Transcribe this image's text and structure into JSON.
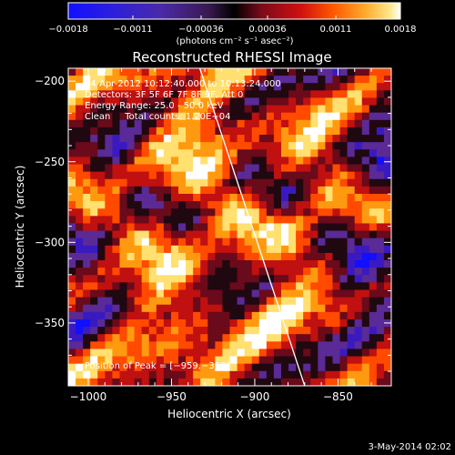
{
  "chart_data": {
    "type": "heatmap",
    "title": "Reconstructed RHESSI Image",
    "xlabel": "Heliocentric X (arcsec)",
    "ylabel": "Heliocentric Y (arcsec)",
    "xlim": [
      -1012,
      -818
    ],
    "ylim": [
      -389,
      -192
    ],
    "xticks": [
      -1000,
      -950,
      -900,
      -850
    ],
    "xtick_labels": [
      "−1000",
      "−950",
      "−900",
      "−850"
    ],
    "yticks": [
      -200,
      -250,
      -300,
      -350
    ],
    "ytick_labels": [
      "−200",
      "−250",
      "−300",
      "−350"
    ],
    "colorbar": {
      "min": -0.0018,
      "max": 0.0018,
      "ticks": [
        -0.0018,
        -0.0011,
        -0.00036,
        0.00036,
        0.0011,
        0.0018
      ],
      "tick_labels": [
        "−0.0018",
        "−0.0011",
        "−0.00036",
        "0.00036",
        "0.0011",
        "0.0018"
      ],
      "units": "(photons cm⁻² s⁻¹ asec⁻²)"
    },
    "annotations": [
      "24-Apr-2012 10:12:40.000 to 10:13:24.000",
      "Detectors: 3F 5F 6F 7F 8F 9F, Att 0",
      "Energy Range: 25.0 - 50.0 keV",
      "Clean     Total counts: 1.20E+04"
    ],
    "peak_label": "Position of Peak = [−959,−353]",
    "peak": [
      -959,
      -353
    ],
    "limb_line": {
      "x": [
        -933,
        -870
      ],
      "y": [
        -192,
        -389
      ]
    },
    "grid": false,
    "colormap": [
      "#1010ff",
      "#3a1ac0",
      "#5a2a96",
      "#200810",
      "#6a0a1a",
      "#c01010",
      "#ff4a00",
      "#ff9a10",
      "#ffe070",
      "#ffffff"
    ]
  },
  "footer": {
    "date": "3-May-2014 02:02"
  }
}
